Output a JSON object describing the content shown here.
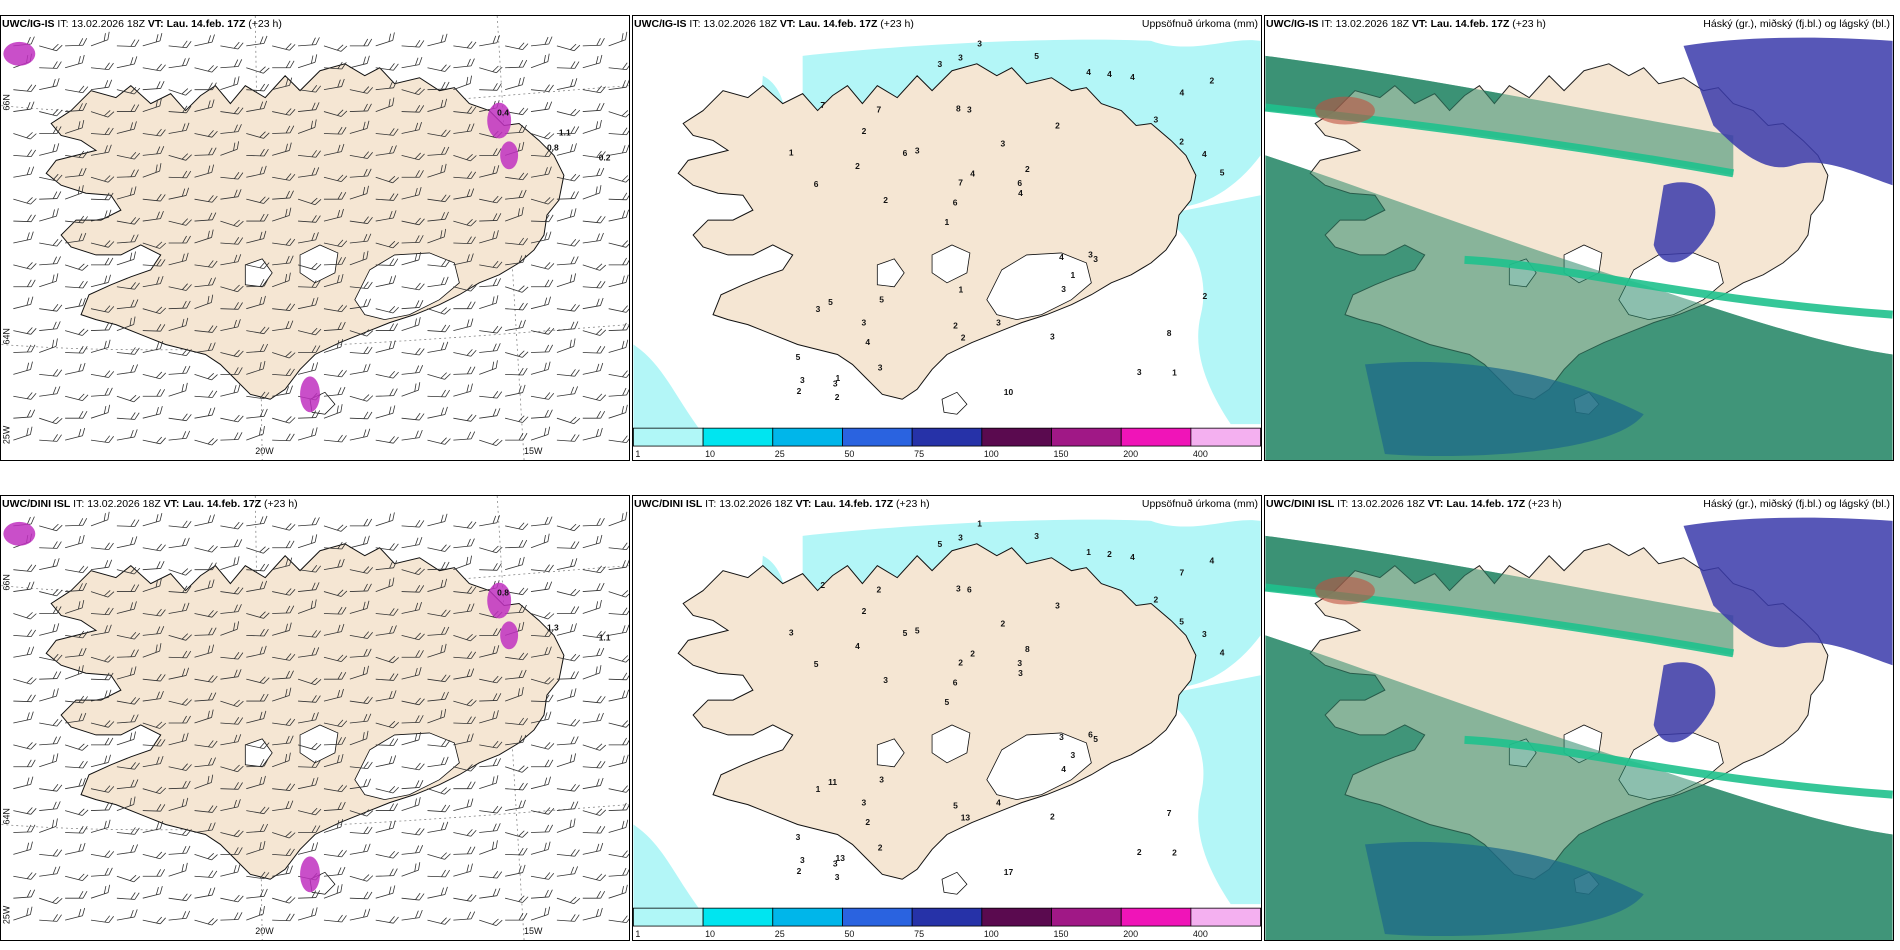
{
  "rows": [
    {
      "model": "UWC/IG-IS",
      "it_label": "IT:",
      "it_value": "13.02.2026 18Z",
      "vt_label": "VT:",
      "vt_value": "Lau. 14.feb. 17Z",
      "lead": "(+23 h)",
      "precip_numbers": [
        "1",
        "6",
        "4",
        "1",
        "2",
        "1",
        "8",
        "3",
        "5",
        "3",
        "5",
        "4",
        "3",
        "2",
        "3",
        "7",
        "3",
        "5",
        "4",
        "2",
        "6",
        "2",
        "7",
        "7",
        "4",
        "5",
        "3",
        "8",
        "3",
        "10",
        "6",
        "2",
        "3",
        "3",
        "4",
        "6",
        "3",
        "2",
        "4",
        "3",
        "3",
        "2",
        "1",
        "3",
        "3",
        "2",
        "2",
        "3",
        "4",
        "3",
        "2",
        "1",
        "2",
        "4",
        "3",
        "5",
        "3",
        "4",
        "2",
        "1"
      ],
      "wind_lon_labels": [
        "20W",
        "15W"
      ],
      "wind_lat_labels": [
        "66N",
        "64N"
      ],
      "wind_values": [
        "0.4",
        "0.2",
        "0.8",
        "1.1"
      ]
    },
    {
      "model": "UWC/DINI ISL",
      "it_label": "IT:",
      "it_value": "13.02.2026 18Z",
      "vt_label": "VT:",
      "vt_value": "Lau. 14.feb. 17Z",
      "lead": "(+23 h)",
      "precip_numbers": [
        "2",
        "5",
        "7",
        "5",
        "3",
        "13",
        "3",
        "2",
        "11",
        "5",
        "3",
        "2",
        "6",
        "8",
        "5",
        "2",
        "3",
        "4",
        "3",
        "5",
        "6",
        "5",
        "2",
        "2",
        "1",
        "3",
        "2",
        "7",
        "6",
        "17",
        "5",
        "4",
        "4",
        "2",
        "3",
        "3",
        "3",
        "13",
        "3",
        "1",
        "2",
        "4",
        "3",
        "2",
        "3",
        "3",
        "2",
        "4",
        "4",
        "1",
        "3",
        "3",
        "2",
        "2",
        "3",
        "3",
        "5",
        "2"
      ],
      "wind_lon_labels": [
        "20W",
        "15W"
      ],
      "wind_lat_labels": [
        "66N",
        "64N"
      ],
      "wind_values": [
        "0.8",
        "1.1",
        "1.3"
      ]
    }
  ],
  "precip_title": "Uppsöfnuð úrkoma (mm)",
  "cloud_title": "Háský (gr.), miðský (fj.bl.) og lágský (bl.)",
  "colorbar": {
    "ticks": [
      "1",
      "10",
      "25",
      "50",
      "75",
      "100",
      "150",
      "200",
      "400"
    ],
    "colors": [
      "#b0f7f7",
      "#00e5f0",
      "#00b6ea",
      "#2a63e0",
      "#2632a8",
      "#5a0a4f",
      "#a01886",
      "#f014b8",
      "#f4b0f0"
    ]
  },
  "corner_lat_label": "25W",
  "colors": {
    "land": "#f5e6d3",
    "ice": "#ffffff",
    "precip_light": "#b3f6f7",
    "cloud_high": "#2d8b6b",
    "cloud_mid": "#3a3aaa",
    "cloud_low": "#1fc18d"
  }
}
